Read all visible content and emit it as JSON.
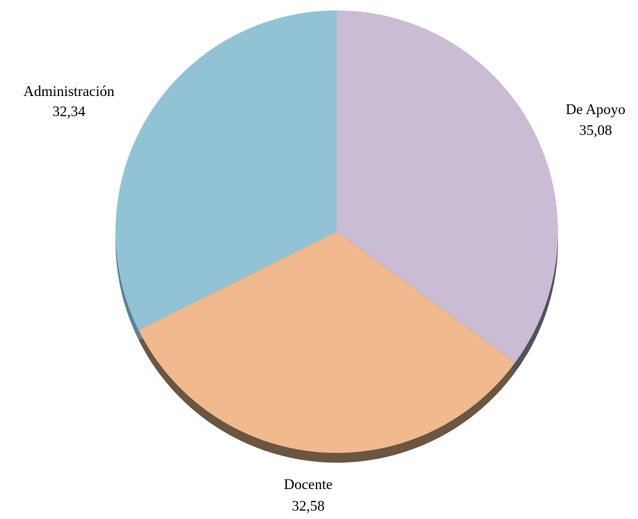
{
  "chart_data": {
    "type": "pie",
    "categories": [
      "De Apoyo",
      "Docente",
      "Administración"
    ],
    "values": [
      35.08,
      32.58,
      32.34
    ],
    "value_labels": [
      "35,08",
      "32,58",
      "32,34"
    ],
    "colors": [
      "#c9bcd4",
      "#f0b98e",
      "#91c3d5"
    ],
    "shadow_colors": [
      "#52525c",
      "#6b5640",
      "#5a8597"
    ],
    "start_angle_deg": 0,
    "direction": "clockwise",
    "legend": "none",
    "title": ""
  }
}
